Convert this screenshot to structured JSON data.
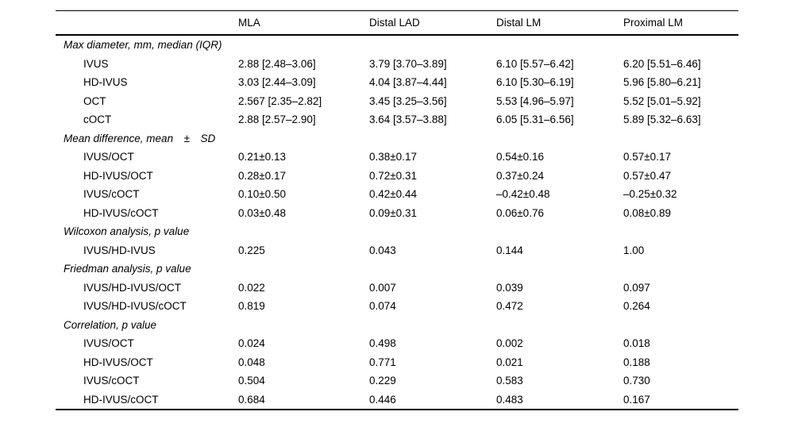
{
  "table": {
    "columns": [
      "",
      "MLA",
      "Distal LAD",
      "Distal LM",
      "Proximal LM"
    ],
    "sections": [
      {
        "label": "Max diameter, mm, median (IQR)",
        "rows": [
          {
            "label": "IVUS",
            "values": [
              "2.88 [2.48–3.06]",
              "3.79 [3.70–3.89]",
              "6.10 [5.57–6.42]",
              "6.20 [5.51–6.46]"
            ]
          },
          {
            "label": "HD-IVUS",
            "values": [
              "3.03 [2.44–3.09]",
              "4.04 [3.87–4.44]",
              "6.10 [5.30–6.19]",
              "5.96 [5.80–6.21]"
            ]
          },
          {
            "label": "OCT",
            "values": [
              "2.567 [2.35–2.82]",
              "3.45 [3.25–3.56]",
              "5.53 [4.96–5.97]",
              "5.52 [5.01–5.92]"
            ]
          },
          {
            "label": "cOCT",
            "values": [
              "2.88 [2.57–2.90]",
              "3.64 [3.57–3.88]",
              "6.05 [5.31–6.56]",
              "5.89 [5.32–6.63]"
            ]
          }
        ]
      },
      {
        "label": "Mean difference, mean ± SD",
        "rows": [
          {
            "label": "IVUS/OCT",
            "values": [
              "0.21±0.13",
              "0.38±0.17",
              "0.54±0.16",
              "0.57±0.17"
            ]
          },
          {
            "label": "HD-IVUS/OCT",
            "values": [
              "0.28±0.17",
              "0.72±0.31",
              "0.37±0.24",
              "0.57±0.47"
            ]
          },
          {
            "label": "IVUS/cOCT",
            "values": [
              "0.10±0.50",
              "0.42±0.44",
              "–0.42±0.48",
              "–0.25±0.32"
            ]
          },
          {
            "label": "HD-IVUS/cOCT",
            "values": [
              "0.03±0.48",
              "0.09±0.31",
              "0.06±0.76",
              "0.08±0.89"
            ]
          }
        ]
      },
      {
        "label": "Wilcoxon analysis, p value",
        "rows": [
          {
            "label": "IVUS/HD-IVUS",
            "values": [
              "0.225",
              "0.043",
              "0.144",
              "1.00"
            ]
          }
        ]
      },
      {
        "label": "Friedman analysis, p value",
        "rows": [
          {
            "label": "IVUS/HD-IVUS/OCT",
            "values": [
              "0.022",
              "0.007",
              "0.039",
              "0.097"
            ]
          },
          {
            "label": "IVUS/HD-IVUS/cOCT",
            "values": [
              "0.819",
              "0.074",
              "0.472",
              "0.264"
            ]
          }
        ]
      },
      {
        "label": "Correlation, p value",
        "rows": [
          {
            "label": "IVUS/OCT",
            "values": [
              "0.024",
              "0.498",
              "0.002",
              "0.018"
            ]
          },
          {
            "label": "HD-IVUS/OCT",
            "values": [
              "0.048",
              "0.771",
              "0.021",
              "0.188"
            ]
          },
          {
            "label": "IVUS/cOCT",
            "values": [
              "0.504",
              "0.229",
              "0.583",
              "0.730"
            ]
          },
          {
            "label": "HD-IVUS/cOCT",
            "values": [
              "0.684",
              "0.446",
              "0.483",
              "0.167"
            ]
          }
        ]
      }
    ]
  }
}
